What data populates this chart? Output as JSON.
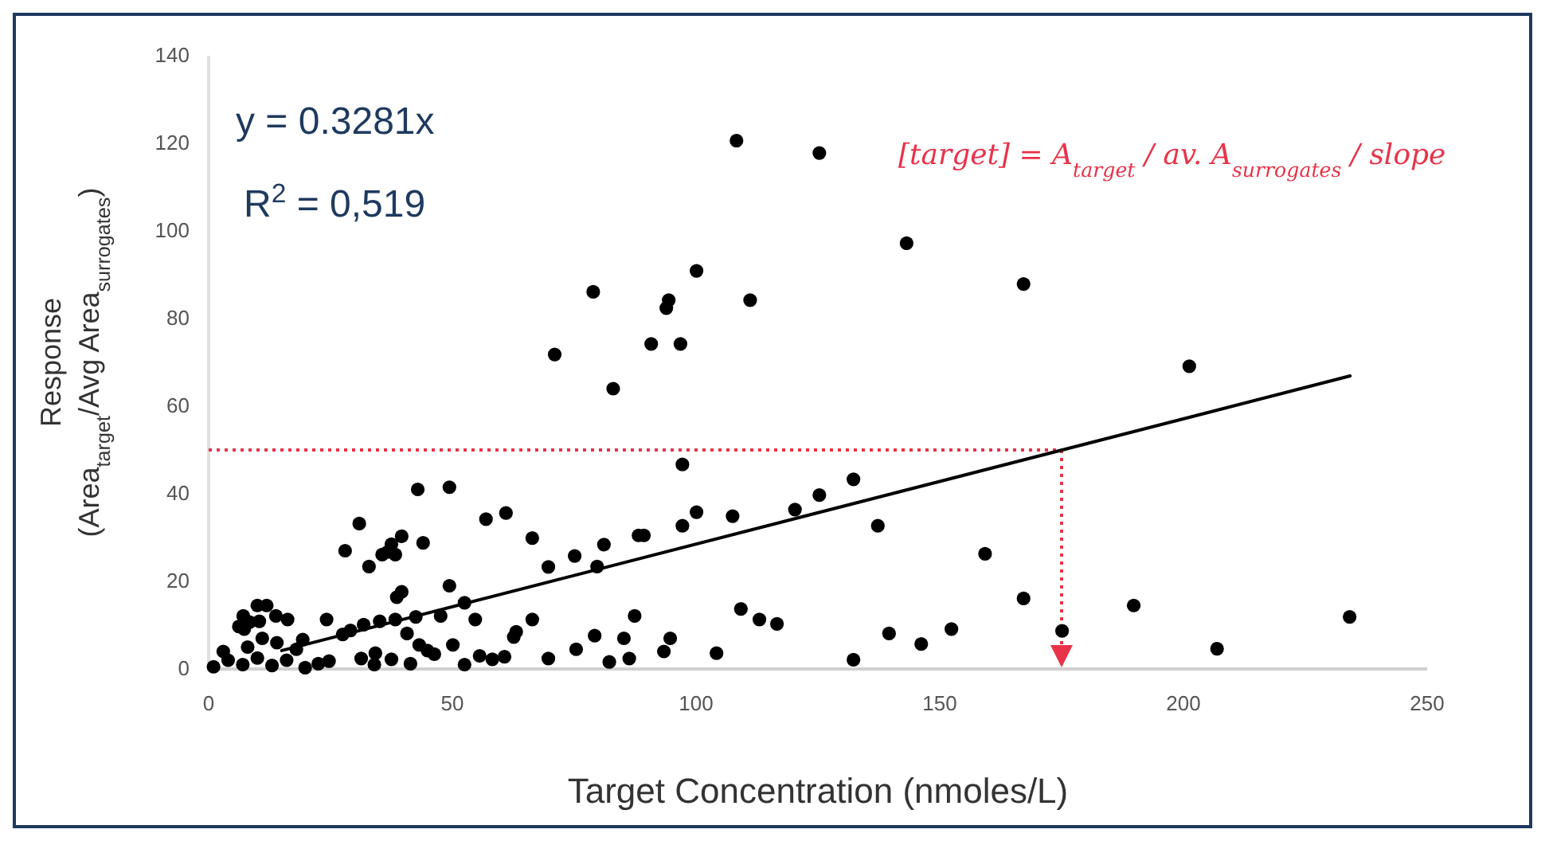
{
  "chart_data": {
    "type": "scatter",
    "xlabel": "Target Concentration (nmoles/L)",
    "ylabel": "Response\n(Area$_{target}$/Avg Area$_{surrogates}$)",
    "xlim": [
      0,
      250
    ],
    "ylim": [
      0,
      140
    ],
    "xticks": [
      0,
      50,
      100,
      150,
      200,
      250
    ],
    "yticks": [
      0,
      20,
      40,
      60,
      80,
      100,
      120,
      140
    ],
    "grid": false,
    "annotations": [
      "y = 0.3281x",
      "R$^{2}$ = 0,519",
      "[target] = A$_{target}$ / av. A$_{surrogates}$ / slope"
    ],
    "ref_lines": [
      {
        "axis": "y",
        "value": 50,
        "color": "#e8334a",
        "line_style": "dotted"
      },
      {
        "axis": "x",
        "value": 175,
        "color": "#e8334a",
        "line_style": "dotted"
      }
    ],
    "series": [
      {
        "marker": "circle",
        "color": "#000000",
        "x": [
          108.3,
          100.1,
          78.9,
          94.4,
          93.9,
          111.1,
          90.8,
          96.8,
          71.0,
          83.0,
          97.2,
          42.9,
          49.4,
          100.1,
          107.5,
          97.2,
          120.3,
          61.0,
          56.9,
          30.9,
          88.2,
          89.3,
          66.4,
          44.0,
          39.6,
          37.5,
          36.7,
          35.6,
          38.3,
          28.0,
          81.1,
          75.1,
          32.9,
          69.7,
          79.7,
          49.4,
          39.6,
          38.6,
          52.5,
          10.0,
          11.9,
          7.1,
          8.4,
          10.4,
          6.2,
          7.3,
          13.8,
          16.2,
          24.2,
          35.1,
          31.8,
          29.1,
          27.5,
          38.3,
          42.5,
          47.6,
          54.7,
          66.4,
          87.4,
          109.2,
          113.0,
          116.6,
          40.7,
          43.2,
          44.9,
          46.3,
          50.1,
          19.3,
          63.1,
          62.6,
          79.2,
          85.2,
          94.7,
          75.4,
          93.4,
          104.2,
          31.3,
          34.2,
          34.0,
          37.5,
          41.4,
          52.5,
          55.6,
          58.2,
          60.7,
          69.7,
          82.2,
          86.3,
          24.7,
          22.5,
          19.8,
          1,
          4,
          7,
          10,
          13,
          16,
          18,
          8,
          11,
          14,
          3,
          125.3,
          143.2,
          167.2,
          201.2,
          132.3,
          125.3,
          137.3,
          159.3,
          167.2,
          189.8,
          234.1,
          139.6,
          152.4,
          146.2,
          132.3,
          175.1,
          206.9
        ],
        "values": [
          120.6,
          90.9,
          86.1,
          84.2,
          82.4,
          84.2,
          74.2,
          74.2,
          71.8,
          64.0,
          46.7,
          41.0,
          41.5,
          35.8,
          34.9,
          32.7,
          36.4,
          35.6,
          34.2,
          33.2,
          30.5,
          30.5,
          29.9,
          28.8,
          30.3,
          28.5,
          26.7,
          26.1,
          26.1,
          27.0,
          28.4,
          25.8,
          23.4,
          23.3,
          23.4,
          19.0,
          17.6,
          16.4,
          15.1,
          14.5,
          14.5,
          12.1,
          10.7,
          10.9,
          9.7,
          9.1,
          12.1,
          11.3,
          11.3,
          10.9,
          10.1,
          8.8,
          7.9,
          11.3,
          11.9,
          12.1,
          11.3,
          11.3,
          12.1,
          13.7,
          11.3,
          10.3,
          8.1,
          5.5,
          4.2,
          3.4,
          5.5,
          6.7,
          8.5,
          7.3,
          7.6,
          7.0,
          7.0,
          4.5,
          4.0,
          3.6,
          2.4,
          3.6,
          1.0,
          2.2,
          1.2,
          1.0,
          3.0,
          2.2,
          2.8,
          2.4,
          1.6,
          2.4,
          1.8,
          1.2,
          0.3,
          0.5,
          2,
          1,
          2.5,
          0.8,
          2,
          4.5,
          5,
          7,
          6,
          4,
          117.8,
          97.2,
          87.9,
          69.1,
          43.3,
          39.7,
          32.7,
          26.3,
          16.1,
          14.5,
          11.9,
          8.1,
          9.1,
          5.7,
          2.1,
          8.7,
          4.6
        ]
      },
      {
        "type": "line",
        "color": "#000000",
        "line_style": "solid",
        "x": [
          15,
          234.2
        ],
        "values": [
          4.2,
          66.9
        ]
      }
    ]
  }
}
